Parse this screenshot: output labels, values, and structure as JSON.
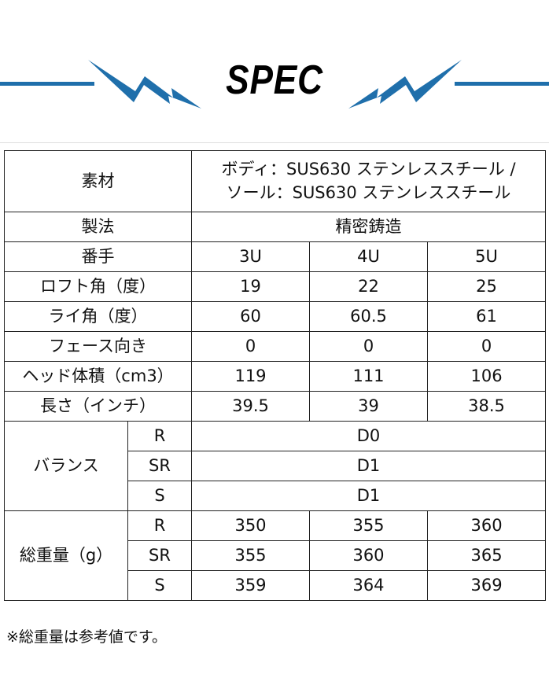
{
  "title": "SPEC",
  "accent_color": "#1f6fab",
  "table": {
    "material": {
      "label": "素材",
      "value_line1": "ボディ：SUS630 ステンレススチール /",
      "value_line2": "ソール：SUS630 ステンレススチール"
    },
    "method": {
      "label": "製法",
      "value": "精密鋳造"
    },
    "number": {
      "label": "番手",
      "values": [
        "3U",
        "4U",
        "5U"
      ]
    },
    "rows": [
      {
        "label": "ロフト角（度）",
        "values": [
          "19",
          "22",
          "25"
        ]
      },
      {
        "label": "ライ角（度）",
        "values": [
          "60",
          "60.5",
          "61"
        ]
      },
      {
        "label": "フェース向き",
        "values": [
          "0",
          "0",
          "0"
        ]
      },
      {
        "label": "ヘッド体積（cm3）",
        "values": [
          "119",
          "111",
          "106"
        ]
      },
      {
        "label": "長さ（インチ）",
        "values": [
          "39.5",
          "39",
          "38.5"
        ]
      }
    ],
    "balance": {
      "label": "バランス",
      "rows": [
        {
          "flex": "R",
          "value": "D0"
        },
        {
          "flex": "SR",
          "value": "D1"
        },
        {
          "flex": "S",
          "value": "D1"
        }
      ]
    },
    "weight": {
      "label": "総重量（g）",
      "rows": [
        {
          "flex": "R",
          "values": [
            "350",
            "355",
            "360"
          ]
        },
        {
          "flex": "SR",
          "values": [
            "355",
            "360",
            "365"
          ]
        },
        {
          "flex": "S",
          "values": [
            "359",
            "364",
            "369"
          ]
        }
      ]
    }
  },
  "footnote": "※総重量は参考値です。"
}
